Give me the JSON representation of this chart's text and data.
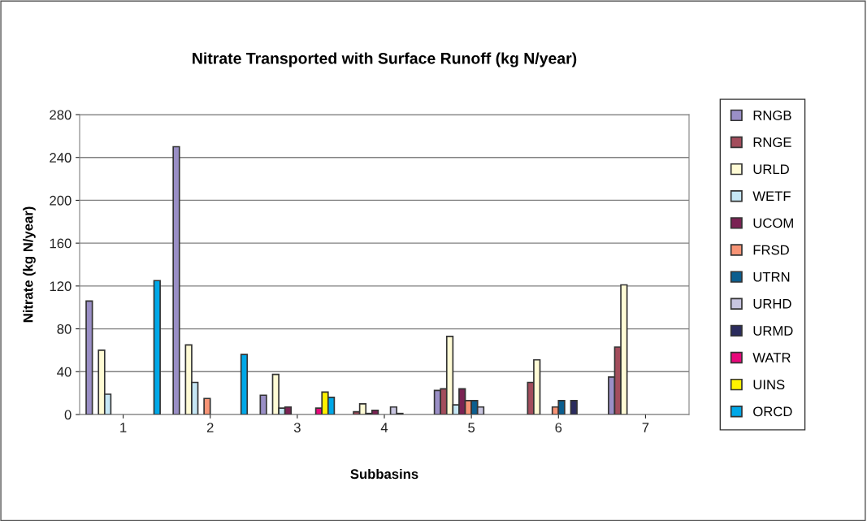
{
  "chart_data": {
    "type": "bar",
    "title": "Nitrate Transported with Surface Runoff (kg N/year)",
    "xlabel": "Subbasins",
    "ylabel": "Nitrate (kg N/year)",
    "categories": [
      "1",
      "2",
      "3",
      "4",
      "5",
      "6",
      "7"
    ],
    "series": [
      {
        "name": "RNGB",
        "color": "#9a8fc6",
        "values": [
          106,
          250,
          18,
          null,
          22.5,
          null,
          35
        ]
      },
      {
        "name": "RNGE",
        "color": "#a34d5c",
        "values": [
          null,
          null,
          null,
          2.5,
          24,
          30,
          63
        ]
      },
      {
        "name": "URLD",
        "color": "#fffbd5",
        "values": [
          60,
          65,
          37.5,
          10,
          73,
          51,
          121
        ]
      },
      {
        "name": "WETF",
        "color": "#c6e7f5",
        "values": [
          19,
          30,
          6,
          1,
          9,
          null,
          null
        ]
      },
      {
        "name": "UCOM",
        "color": "#7a2253",
        "values": [
          null,
          null,
          7,
          4,
          24,
          null,
          null
        ]
      },
      {
        "name": "FRSD",
        "color": "#f79476",
        "values": [
          null,
          15,
          null,
          null,
          13,
          7,
          null
        ]
      },
      {
        "name": "UTRN",
        "color": "#0b5e8f",
        "values": [
          null,
          null,
          null,
          null,
          13,
          13,
          null
        ]
      },
      {
        "name": "URHD",
        "color": "#c8c5e0",
        "values": [
          null,
          null,
          null,
          7,
          7,
          null,
          null
        ]
      },
      {
        "name": "URMD",
        "color": "#2b2c5e",
        "values": [
          null,
          null,
          null,
          1,
          null,
          13,
          null
        ]
      },
      {
        "name": "WATR",
        "color": "#e8087b",
        "values": [
          null,
          null,
          6,
          null,
          null,
          null,
          null
        ]
      },
      {
        "name": "UINS",
        "color": "#fff200",
        "values": [
          null,
          null,
          21,
          null,
          null,
          null,
          null
        ]
      },
      {
        "name": "ORCD",
        "color": "#00a8e8",
        "values": [
          125,
          56,
          16,
          null,
          null,
          null,
          null
        ]
      }
    ],
    "ylim": [
      0,
      280
    ],
    "yticks": [
      0,
      40,
      80,
      120,
      160,
      200,
      240,
      280
    ],
    "grid": "y",
    "legend": "right"
  }
}
